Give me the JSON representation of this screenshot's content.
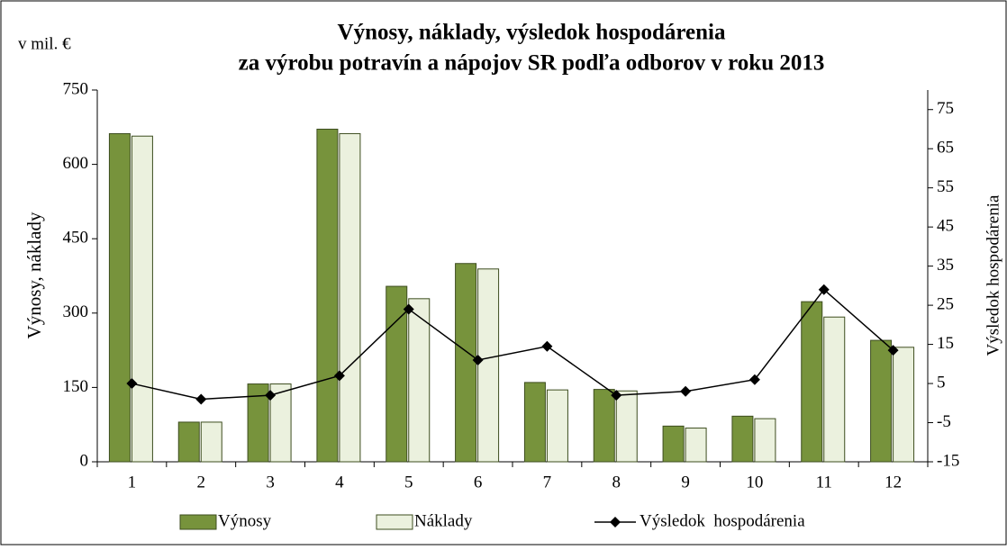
{
  "chart_data": {
    "type": "bar",
    "title": [
      "Výnosy, náklady, výsledok hospodárenia",
      "za výrobu potravín a nápojov SR podľa odborov v roku 2013"
    ],
    "unit_label": "v mil. €",
    "ylabel": "Výnosy, náklady",
    "y2label": "Výsledok hospodárenia",
    "categories": [
      "1",
      "2",
      "3",
      "4",
      "5",
      "6",
      "7",
      "8",
      "9",
      "10",
      "11",
      "12"
    ],
    "series": [
      {
        "name": "Výnosy",
        "type": "bar",
        "color": "#77933c",
        "values": [
          662,
          80,
          157,
          671,
          354,
          400,
          160,
          146,
          72,
          92,
          323,
          245
        ]
      },
      {
        "name": "Náklady",
        "type": "bar",
        "color": "#ebf1de",
        "values": [
          657,
          80,
          157,
          662,
          329,
          389,
          145,
          143,
          68,
          87,
          292,
          231
        ]
      },
      {
        "name": "Výsledok  hospodárenia",
        "type": "line",
        "axis": "y2",
        "color": "#000000",
        "values": [
          5,
          1,
          2,
          7,
          24,
          11,
          14.5,
          2,
          3,
          6,
          29,
          13.5
        ]
      }
    ],
    "ylim": [
      0,
      750
    ],
    "yticks": [
      0,
      150,
      300,
      450,
      600,
      750
    ],
    "y2lim": [
      -15,
      80
    ],
    "y2ticks": [
      -15,
      -5,
      5,
      15,
      25,
      35,
      45,
      55,
      65,
      75
    ],
    "legend": "bottom"
  }
}
